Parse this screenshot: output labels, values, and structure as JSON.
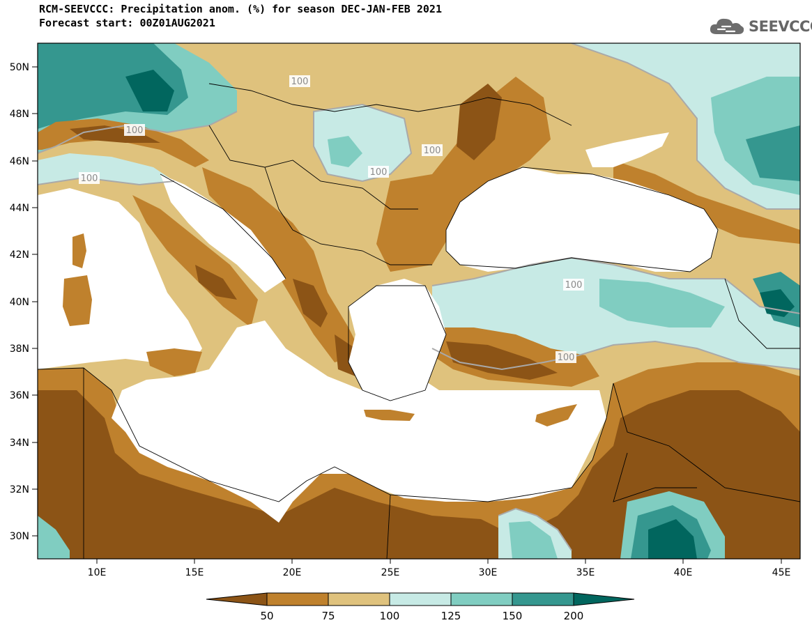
{
  "header": {
    "title_line1": "RCM-SEEVCCC: Precipitation anom. (%) for season DEC-JAN-FEB 2021",
    "title_line2": "Forecast start: 00Z01AUG2021"
  },
  "logo": {
    "text": "SEEVCCC",
    "icon": "cloud-icon"
  },
  "map": {
    "lat_ticks": [
      "50N",
      "48N",
      "46N",
      "44N",
      "42N",
      "40N",
      "38N",
      "36N",
      "34N",
      "32N",
      "30N"
    ],
    "lon_ticks": [
      "10E",
      "15E",
      "20E",
      "25E",
      "30E",
      "35E",
      "40E",
      "45E"
    ],
    "contour_labels": [
      "100",
      "100",
      "100",
      "100",
      "100",
      "100",
      "100"
    ],
    "colors": {
      "sea": "#ffffff",
      "below_50": "#8c5416",
      "c50_75": "#bf812d",
      "c75_100": "#dfc27d",
      "c100_125": "#c7eae5",
      "c125_150": "#80cdc1",
      "c150_200": "#35978f",
      "above_200": "#01665e"
    }
  },
  "colorbar": {
    "labels": [
      "50",
      "75",
      "100",
      "125",
      "150",
      "200"
    ],
    "colors": [
      "#8c5416",
      "#bf812d",
      "#dfc27d",
      "#c7eae5",
      "#80cdc1",
      "#35978f",
      "#01665e"
    ]
  }
}
